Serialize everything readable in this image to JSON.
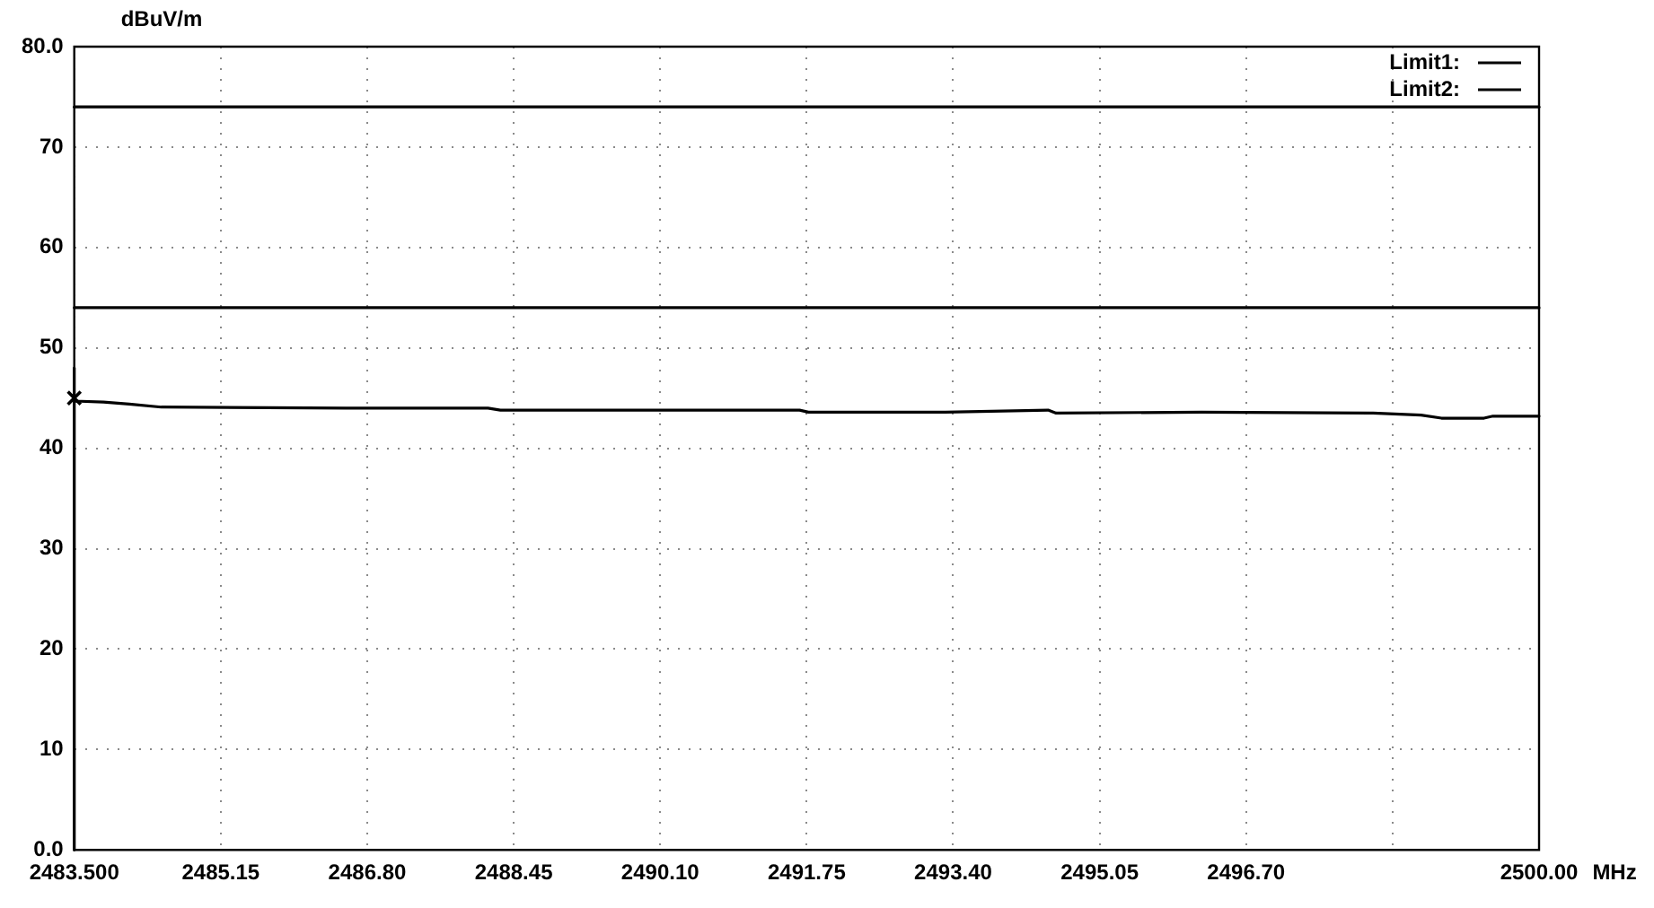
{
  "chart_data": {
    "type": "line",
    "ylabel": "dBuV/m",
    "xlabel": "MHz",
    "xlim": [
      2483.5,
      2500
    ],
    "xticks": [
      {
        "value": 2483.5,
        "label": "2483.500"
      },
      2485.15,
      {
        "value": 2486.8,
        "label": "2486.80"
      },
      2488.45,
      {
        "value": 2490.1,
        "label": "2490.10"
      },
      2491.75,
      {
        "value": 2493.4,
        "label": "2493.40"
      },
      2495.05,
      {
        "value": 2496.7,
        "label": "2496.70"
      },
      {
        "value": 2498.35,
        "label": null
      },
      {
        "value": 2500,
        "label": "2500.00"
      }
    ],
    "ylim": [
      0,
      80
    ],
    "yticks": [
      {
        "value": 0,
        "label": "0.0"
      },
      10,
      20,
      30,
      40,
      50,
      60,
      70,
      {
        "value": 80,
        "label": "80.0"
      }
    ],
    "grid": true,
    "legend": "top right",
    "marker": "none",
    "line_style": "solid",
    "series": [
      {
        "name": "Limit1:",
        "color": "#000000",
        "x": [
          2483.5,
          2500
        ],
        "values": [
          74,
          74
        ]
      },
      {
        "name": "Limit2:",
        "color": "#000000",
        "x": [
          2483.5,
          2500
        ],
        "values": [
          54,
          54
        ]
      },
      {
        "color": "#000000",
        "x": [
          2483.5,
          2483.5,
          2483.5,
          2483.83,
          2484.12,
          2484.48,
          2486.56,
          2488.16,
          2488.3,
          2489.65,
          2491.67,
          2491.77,
          2493.31,
          2494.47,
          2494.56,
          2496.2,
          2498.13,
          2498.67,
          2498.9,
          2499.38,
          2499.48,
          2500
        ],
        "values": [
          0,
          48,
          44.7,
          44.6,
          44.4,
          44.1,
          44.0,
          44.0,
          43.8,
          43.8,
          43.8,
          43.6,
          43.6,
          43.8,
          43.5,
          43.6,
          43.5,
          43.3,
          43.0,
          43.0,
          43.2,
          43.2
        ]
      },
      {
        "type": "scatter",
        "marker": "cross",
        "color": "#000000",
        "x": [
          2483.5
        ],
        "values": [
          45
        ]
      }
    ]
  }
}
